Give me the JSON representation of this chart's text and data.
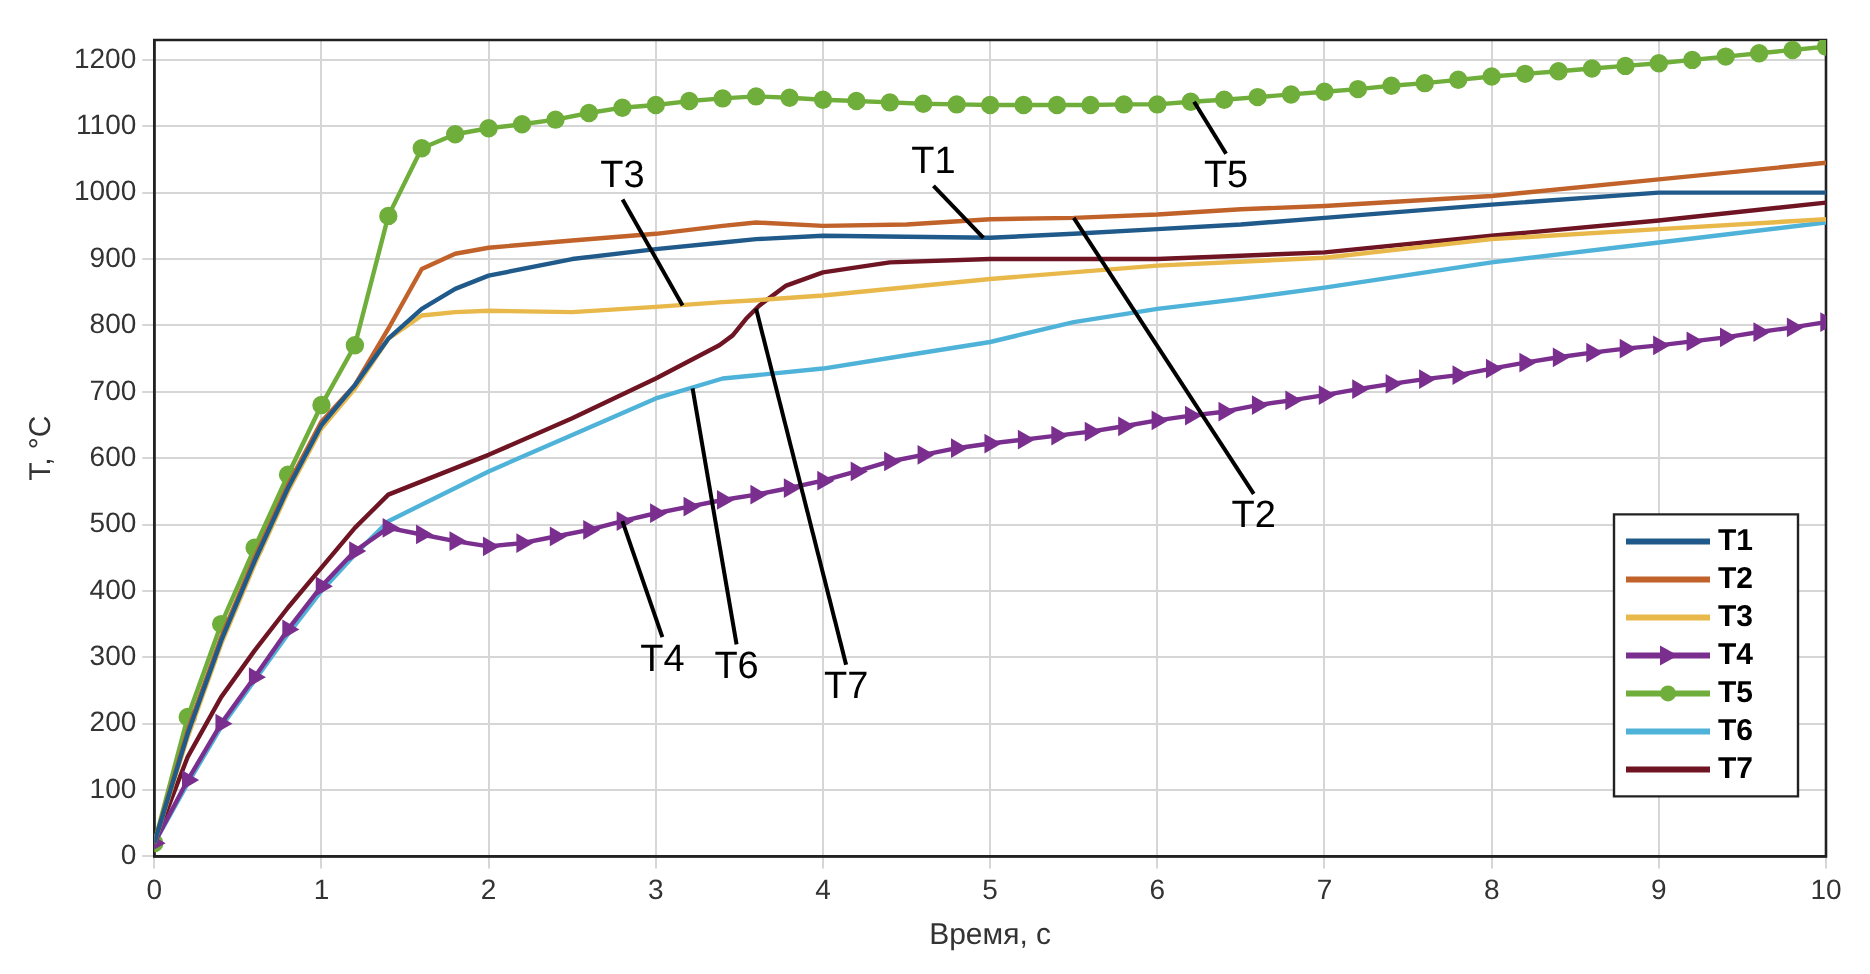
{
  "chart_data": {
    "type": "line",
    "xlabel": "Время, с",
    "ylabel": "T, °C",
    "xlim": [
      0,
      10
    ],
    "xticks": [
      0,
      1,
      2,
      3,
      4,
      5,
      6,
      7,
      8,
      9,
      10
    ],
    "ylim": [
      0,
      1230
    ],
    "yticks": [
      0,
      100,
      200,
      300,
      400,
      500,
      600,
      700,
      800,
      900,
      1000,
      1100,
      1200
    ],
    "grid": true,
    "legend": "bottom right",
    "line_style": "solid",
    "series": [
      {
        "name": "T1",
        "color": "#1f5a8a",
        "marker": "none",
        "x": [
          0,
          0.2,
          0.4,
          0.6,
          0.8,
          1,
          1.2,
          1.4,
          1.6,
          1.8,
          2,
          2.5,
          3,
          3.4,
          3.6,
          4,
          5,
          5.5,
          6,
          6.5,
          7,
          8,
          9,
          10
        ],
        "values": [
          20,
          185,
          325,
          445,
          555,
          650,
          710,
          780,
          825,
          855,
          875,
          900,
          915,
          925,
          930,
          935,
          932,
          938,
          945,
          952,
          962,
          982,
          1000,
          1000
        ]
      },
      {
        "name": "T2",
        "color": "#c0622a",
        "marker": "none",
        "x": [
          0,
          0.2,
          0.4,
          0.6,
          0.8,
          1,
          1.2,
          1.4,
          1.6,
          1.8,
          2,
          2.5,
          3,
          3.4,
          3.6,
          4,
          4.5,
          5,
          5.5,
          6,
          6.5,
          7,
          8,
          9,
          10
        ],
        "values": [
          20,
          190,
          330,
          450,
          560,
          655,
          710,
          795,
          885,
          908,
          917,
          928,
          938,
          950,
          955,
          950,
          952,
          960,
          962,
          967,
          975,
          980,
          995,
          1020,
          1045
        ]
      },
      {
        "name": "T3",
        "color": "#e8b84a",
        "marker": "none",
        "x": [
          0,
          0.2,
          0.4,
          0.6,
          0.8,
          1,
          1.2,
          1.4,
          1.6,
          1.8,
          2,
          2.5,
          3,
          3.4,
          3.6,
          4,
          5,
          6,
          7,
          8,
          9,
          10
        ],
        "values": [
          20,
          180,
          320,
          440,
          550,
          645,
          705,
          780,
          815,
          820,
          822,
          820,
          828,
          835,
          838,
          845,
          870,
          890,
          902,
          930,
          945,
          960
        ]
      },
      {
        "name": "T4",
        "color": "#7a2f8f",
        "marker": "triangle",
        "x": [
          0,
          0.2,
          0.4,
          0.6,
          0.8,
          1,
          1.2,
          1.4,
          1.6,
          1.8,
          2,
          2.2,
          2.4,
          2.6,
          2.8,
          3,
          3.2,
          3.4,
          3.6,
          3.8,
          4,
          4.2,
          4.4,
          4.6,
          4.8,
          5,
          5.2,
          5.4,
          5.6,
          5.8,
          6,
          6.2,
          6.4,
          6.6,
          6.8,
          7,
          7.2,
          7.4,
          7.6,
          7.8,
          8,
          8.2,
          8.4,
          8.6,
          8.8,
          9,
          9.2,
          9.4,
          9.6,
          9.8,
          10
        ],
        "values": [
          20,
          115,
          200,
          270,
          342,
          407,
          460,
          495,
          485,
          475,
          467,
          472,
          482,
          492,
          505,
          517,
          527,
          537,
          545,
          555,
          566,
          580,
          595,
          605,
          615,
          622,
          628,
          634,
          640,
          648,
          657,
          664,
          670,
          680,
          687,
          695,
          704,
          712,
          719,
          725,
          735,
          744,
          752,
          759,
          765,
          770,
          776,
          782,
          790,
          797,
          805
        ]
      },
      {
        "name": "T5",
        "color": "#6fae3a",
        "marker": "circle",
        "x": [
          0,
          0.2,
          0.4,
          0.6,
          0.8,
          1,
          1.2,
          1.4,
          1.6,
          1.8,
          2,
          2.2,
          2.4,
          2.6,
          2.8,
          3,
          3.2,
          3.4,
          3.6,
          3.8,
          4,
          4.2,
          4.4,
          4.6,
          4.8,
          5,
          5.2,
          5.4,
          5.6,
          5.8,
          6,
          6.2,
          6.4,
          6.6,
          6.8,
          7,
          7.2,
          7.4,
          7.6,
          7.8,
          8,
          8.2,
          8.4,
          8.6,
          8.8,
          9,
          9.2,
          9.4,
          9.6,
          9.8,
          10
        ],
        "values": [
          20,
          210,
          350,
          465,
          575,
          680,
          770,
          965,
          1067,
          1088,
          1097,
          1103,
          1110,
          1120,
          1128,
          1132,
          1138,
          1142,
          1145,
          1143,
          1140,
          1138,
          1136,
          1134,
          1133,
          1132,
          1132,
          1132,
          1132,
          1133,
          1133,
          1137,
          1140,
          1144,
          1148,
          1152,
          1156,
          1161,
          1165,
          1170,
          1175,
          1179,
          1183,
          1187,
          1191,
          1195,
          1200,
          1205,
          1210,
          1215,
          1220
        ]
      },
      {
        "name": "T6",
        "color": "#4fb3d9",
        "marker": "none",
        "x": [
          0,
          0.2,
          0.4,
          0.6,
          0.8,
          1,
          1.2,
          1.4,
          2,
          2.5,
          3,
          3.4,
          3.6,
          4,
          4.5,
          5,
          5.5,
          6,
          6.5,
          7,
          8,
          9,
          10
        ],
        "values": [
          20,
          110,
          195,
          265,
          335,
          400,
          455,
          505,
          580,
          635,
          690,
          720,
          725,
          735,
          755,
          775,
          805,
          825,
          840,
          857,
          895,
          925,
          955
        ]
      },
      {
        "name": "T7",
        "color": "#6e1423",
        "marker": "none",
        "x": [
          0,
          0.2,
          0.4,
          0.6,
          0.8,
          1,
          1.2,
          1.4,
          1.6,
          2,
          2.5,
          3,
          3.38,
          3.46,
          3.54,
          3.62,
          3.78,
          4,
          4.4,
          5,
          6,
          7,
          8,
          9,
          10
        ],
        "values": [
          20,
          150,
          240,
          310,
          375,
          435,
          495,
          545,
          565,
          605,
          660,
          720,
          770,
          785,
          810,
          830,
          860,
          880,
          895,
          900,
          900,
          910,
          935,
          958,
          985
        ]
      }
    ],
    "annotations": [
      {
        "text": "T3",
        "x": 3.16,
        "y": 830
      },
      {
        "text": "T1",
        "x": 4.96,
        "y": 932
      },
      {
        "text": "T5",
        "x": 6.22,
        "y": 1137
      },
      {
        "text": "T2",
        "x": 5.5,
        "y": 962
      },
      {
        "text": "T4",
        "x": 2.8,
        "y": 505
      },
      {
        "text": "T6",
        "x": 3.22,
        "y": 705
      },
      {
        "text": "T7",
        "x": 3.6,
        "y": 825
      }
    ]
  }
}
